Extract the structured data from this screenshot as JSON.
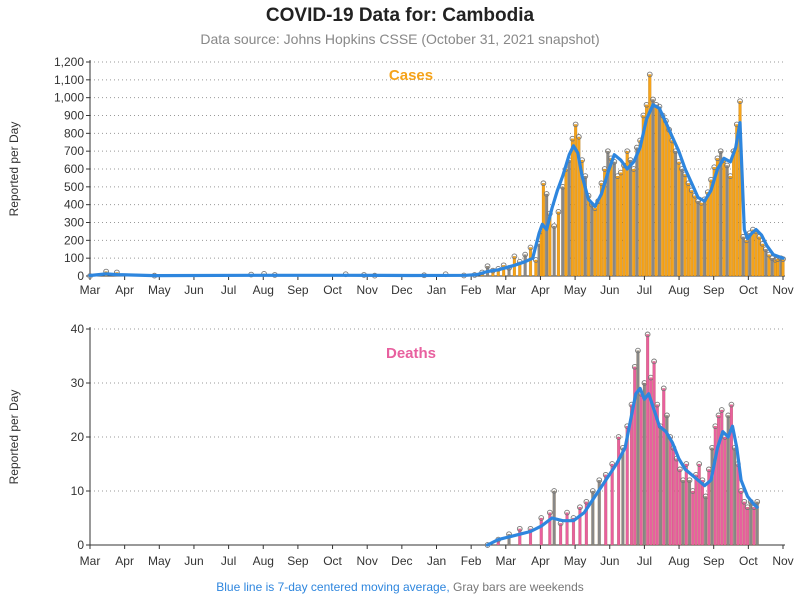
{
  "title": "COVID-19 Data for: Cambodia",
  "subtitle": "Data source: Johns Hopkins CSSE (October 31, 2021 snapshot)",
  "footnote": {
    "blue": "Blue line is 7-day centered moving average,",
    "gray": "Gray bars are weekends"
  },
  "colors": {
    "cases": "#f5a31a",
    "deaths": "#e8609f",
    "moving_average": "#2e86de",
    "weekend": "#888888"
  },
  "chart_data": [
    {
      "type": "bar",
      "title": "Cases",
      "ylabel": "Reported per Day",
      "ylim": [
        0,
        1200
      ],
      "yticks": [
        "0",
        "100",
        "200",
        "300",
        "400",
        "500",
        "600",
        "700",
        "800",
        "900",
        "1,000",
        "1,100",
        "1,200"
      ],
      "xticks": [
        "Mar",
        "Apr",
        "May",
        "Jun",
        "Jul",
        "Aug",
        "Sep",
        "Oct",
        "Nov",
        "Dec",
        "Jan",
        "Feb",
        "Mar",
        "Apr",
        "May",
        "Jun",
        "Jul",
        "Aug",
        "Sep",
        "Oct",
        "Nov"
      ],
      "grid": true,
      "series": [
        {
          "values": [
            [
              0,
              0
            ],
            [
              15,
              25
            ],
            [
              25,
              20
            ],
            [
              60,
              2
            ],
            [
              150,
              8
            ],
            [
              162,
              12
            ],
            [
              172,
              6
            ],
            [
              238,
              10
            ],
            [
              255,
              6
            ],
            [
              265,
              2
            ],
            [
              311,
              4
            ],
            [
              331,
              10
            ],
            [
              348,
              3
            ],
            [
              358,
              6
            ],
            [
              365,
              20
            ],
            [
              370,
              55
            ],
            [
              375,
              30
            ],
            [
              380,
              40
            ],
            [
              385,
              60
            ],
            [
              390,
              45
            ],
            [
              395,
              110
            ],
            [
              400,
              80
            ],
            [
              405,
              120
            ],
            [
              410,
              160
            ],
            [
              415,
              90
            ],
            [
              418,
              180
            ],
            [
              420,
              250
            ],
            [
              422,
              520
            ],
            [
              425,
              460
            ],
            [
              428,
              350
            ],
            [
              432,
              280
            ],
            [
              436,
              360
            ],
            [
              440,
              500
            ],
            [
              443,
              600
            ],
            [
              446,
              650
            ],
            [
              449,
              770
            ],
            [
              452,
              850
            ],
            [
              455,
              780
            ],
            [
              458,
              650
            ],
            [
              461,
              560
            ],
            [
              464,
              450
            ],
            [
              467,
              400
            ],
            [
              470,
              380
            ],
            [
              473,
              420
            ],
            [
              476,
              520
            ],
            [
              479,
              600
            ],
            [
              482,
              700
            ],
            [
              485,
              660
            ],
            [
              488,
              640
            ],
            [
              491,
              560
            ],
            [
              494,
              580
            ],
            [
              497,
              620
            ],
            [
              500,
              700
            ],
            [
              503,
              650
            ],
            [
              506,
              600
            ],
            [
              509,
              720
            ],
            [
              512,
              760
            ],
            [
              515,
              900
            ],
            [
              518,
              960
            ],
            [
              521,
              1130
            ],
            [
              524,
              990
            ],
            [
              527,
              960
            ],
            [
              530,
              950
            ],
            [
              533,
              900
            ],
            [
              536,
              870
            ],
            [
              539,
              820
            ],
            [
              542,
              760
            ],
            [
              545,
              700
            ],
            [
              548,
              640
            ],
            [
              551,
              600
            ],
            [
              554,
              570
            ],
            [
              557,
              520
            ],
            [
              560,
              480
            ],
            [
              563,
              450
            ],
            [
              566,
              420
            ],
            [
              569,
              410
            ],
            [
              572,
              430
            ],
            [
              575,
              470
            ],
            [
              578,
              540
            ],
            [
              581,
              610
            ],
            [
              584,
              660
            ],
            [
              587,
              700
            ],
            [
              590,
              650
            ],
            [
              593,
              620
            ],
            [
              596,
              560
            ],
            [
              599,
              700
            ],
            [
              602,
              850
            ],
            [
              605,
              980
            ],
            [
              608,
              220
            ],
            [
              611,
              200
            ],
            [
              614,
              240
            ],
            [
              617,
              260
            ],
            [
              620,
              250
            ],
            [
              623,
              220
            ],
            [
              626,
              180
            ],
            [
              629,
              150
            ],
            [
              632,
              120
            ],
            [
              635,
              100
            ],
            [
              638,
              90
            ],
            [
              640,
              95
            ],
            [
              643,
              100
            ],
            [
              645,
              95
            ]
          ]
        },
        {
          "name": "7-day moving average",
          "values": [
            [
              0,
              3
            ],
            [
              15,
              12
            ],
            [
              25,
              8
            ],
            [
              60,
              2
            ],
            [
              150,
              4
            ],
            [
              240,
              4
            ],
            [
              300,
              3
            ],
            [
              350,
              4
            ],
            [
              360,
              8
            ],
            [
              370,
              25
            ],
            [
              380,
              35
            ],
            [
              395,
              60
            ],
            [
              405,
              80
            ],
            [
              412,
              100
            ],
            [
              418,
              240
            ],
            [
              421,
              290
            ],
            [
              425,
              260
            ],
            [
              430,
              380
            ],
            [
              435,
              480
            ],
            [
              440,
              560
            ],
            [
              446,
              680
            ],
            [
              450,
              730
            ],
            [
              454,
              690
            ],
            [
              458,
              560
            ],
            [
              464,
              430
            ],
            [
              470,
              390
            ],
            [
              476,
              460
            ],
            [
              482,
              580
            ],
            [
              488,
              680
            ],
            [
              494,
              650
            ],
            [
              500,
              600
            ],
            [
              506,
              640
            ],
            [
              512,
              720
            ],
            [
              518,
              880
            ],
            [
              524,
              960
            ],
            [
              530,
              940
            ],
            [
              536,
              860
            ],
            [
              542,
              780
            ],
            [
              548,
              700
            ],
            [
              554,
              600
            ],
            [
              560,
              520
            ],
            [
              566,
              440
            ],
            [
              572,
              420
            ],
            [
              578,
              480
            ],
            [
              584,
              600
            ],
            [
              590,
              660
            ],
            [
              596,
              640
            ],
            [
              601,
              720
            ],
            [
              605,
              860
            ],
            [
              609,
              260
            ],
            [
              612,
              210
            ],
            [
              616,
              240
            ],
            [
              620,
              260
            ],
            [
              625,
              230
            ],
            [
              630,
              170
            ],
            [
              636,
              120
            ],
            [
              645,
              100
            ]
          ]
        }
      ]
    },
    {
      "type": "bar",
      "title": "Deaths",
      "ylabel": "Reported per Day",
      "ylim": [
        0,
        40
      ],
      "yticks": [
        "0",
        "10",
        "20",
        "30",
        "40"
      ],
      "xticks": [
        "Mar",
        "Apr",
        "May",
        "Jun",
        "Jul",
        "Aug",
        "Sep",
        "Oct",
        "Nov",
        "Dec",
        "Jan",
        "Feb",
        "Mar",
        "Apr",
        "May",
        "Jun",
        "Jul",
        "Aug",
        "Sep",
        "Oct",
        "Nov"
      ],
      "grid": true,
      "series": [
        {
          "values": [
            [
              370,
              0
            ],
            [
              380,
              1
            ],
            [
              390,
              2
            ],
            [
              400,
              3
            ],
            [
              410,
              3
            ],
            [
              420,
              5
            ],
            [
              428,
              6
            ],
            [
              432,
              10
            ],
            [
              438,
              4
            ],
            [
              444,
              6
            ],
            [
              450,
              5
            ],
            [
              456,
              7
            ],
            [
              462,
              8
            ],
            [
              468,
              10
            ],
            [
              474,
              12
            ],
            [
              480,
              13
            ],
            [
              486,
              15
            ],
            [
              492,
              20
            ],
            [
              496,
              18
            ],
            [
              500,
              22
            ],
            [
              504,
              26
            ],
            [
              507,
              33
            ],
            [
              510,
              36
            ],
            [
              513,
              28
            ],
            [
              516,
              30
            ],
            [
              519,
              39
            ],
            [
              522,
              31
            ],
            [
              525,
              34
            ],
            [
              528,
              26
            ],
            [
              531,
              22
            ],
            [
              534,
              29
            ],
            [
              537,
              24
            ],
            [
              540,
              20
            ],
            [
              543,
              18
            ],
            [
              546,
              16
            ],
            [
              549,
              14
            ],
            [
              552,
              12
            ],
            [
              555,
              15
            ],
            [
              558,
              12
            ],
            [
              561,
              10
            ],
            [
              564,
              13
            ],
            [
              567,
              15
            ],
            [
              570,
              12
            ],
            [
              573,
              9
            ],
            [
              576,
              14
            ],
            [
              579,
              18
            ],
            [
              582,
              22
            ],
            [
              585,
              24
            ],
            [
              588,
              25
            ],
            [
              591,
              20
            ],
            [
              594,
              24
            ],
            [
              597,
              26
            ],
            [
              600,
              18
            ],
            [
              603,
              15
            ],
            [
              606,
              10
            ],
            [
              609,
              8
            ],
            [
              612,
              7
            ],
            [
              615,
              8
            ],
            [
              618,
              7
            ],
            [
              621,
              8
            ]
          ]
        },
        {
          "name": "7-day moving average",
          "values": [
            [
              370,
              0
            ],
            [
              380,
              1
            ],
            [
              390,
              1.5
            ],
            [
              400,
              2
            ],
            [
              410,
              2.5
            ],
            [
              420,
              3.5
            ],
            [
              430,
              5
            ],
            [
              440,
              4.5
            ],
            [
              450,
              4.5
            ],
            [
              460,
              6
            ],
            [
              470,
              9
            ],
            [
              480,
              12
            ],
            [
              490,
              15
            ],
            [
              498,
              18
            ],
            [
              504,
              24
            ],
            [
              508,
              28
            ],
            [
              512,
              29
            ],
            [
              516,
              27
            ],
            [
              520,
              28
            ],
            [
              525,
              25
            ],
            [
              530,
              22
            ],
            [
              536,
              21
            ],
            [
              542,
              19
            ],
            [
              548,
              16
            ],
            [
              554,
              14
            ],
            [
              560,
              13
            ],
            [
              566,
              12
            ],
            [
              572,
              11
            ],
            [
              578,
              12
            ],
            [
              584,
              18
            ],
            [
              589,
              21
            ],
            [
              594,
              20
            ],
            [
              598,
              22
            ],
            [
              602,
              18
            ],
            [
              606,
              12
            ],
            [
              612,
              9
            ],
            [
              618,
              7.5
            ],
            [
              621,
              7
            ]
          ]
        }
      ]
    }
  ]
}
